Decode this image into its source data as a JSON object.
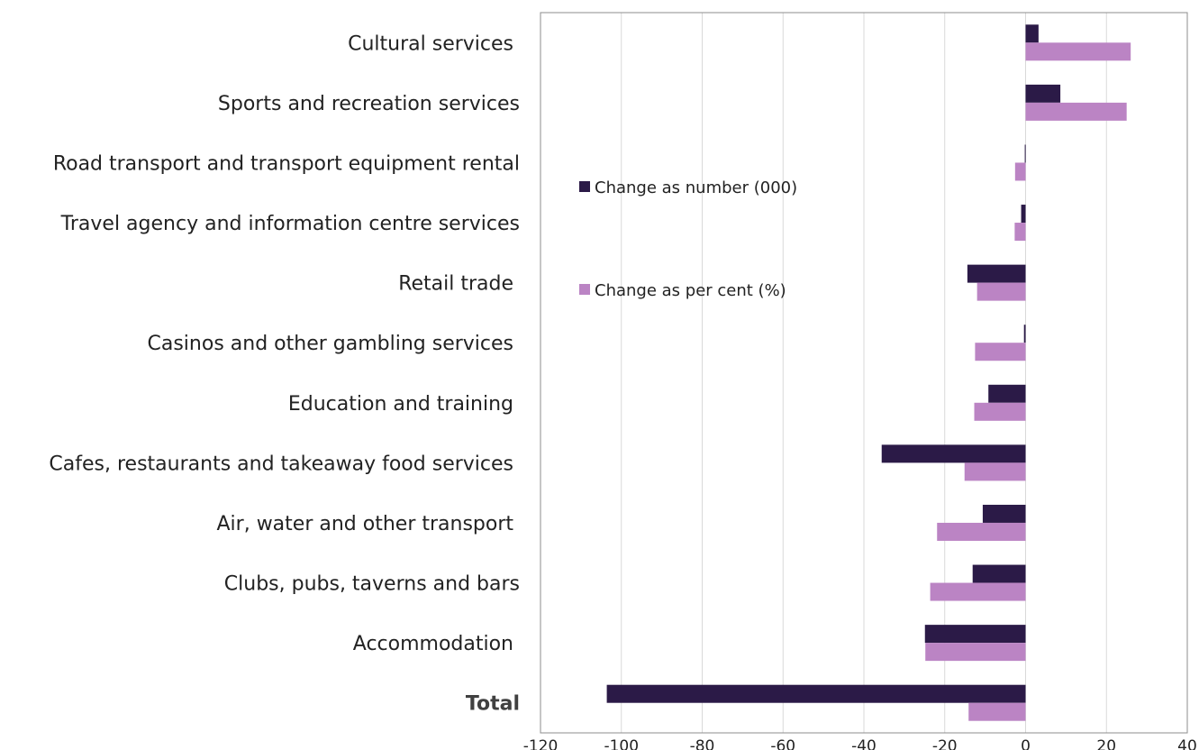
{
  "chart_data": {
    "type": "bar",
    "orientation": "horizontal",
    "categories": [
      "Cultural services ",
      "Sports and recreation services",
      "Road transport and transport equipment rental",
      "Travel agency and information centre services",
      "Retail trade ",
      "Casinos and other gambling services ",
      "Education and training ",
      "Cafes, restaurants and takeaway food services ",
      "Air, water and other transport ",
      "Clubs, pubs, taverns and bars",
      "Accommodation ",
      "Total"
    ],
    "bold_categories": [
      "Total"
    ],
    "series": [
      {
        "name": "Change as number (000)",
        "color": "#2b1a47",
        "values": [
          3.2,
          8.6,
          -0.2,
          -1.1,
          -14.4,
          -0.4,
          -9.2,
          -35.6,
          -10.6,
          -13.1,
          -24.9,
          -103.6
        ]
      },
      {
        "name": "Change as per cent (%)",
        "color": "#bb84c4",
        "values": [
          26.0,
          25.0,
          -2.6,
          -2.7,
          -12.0,
          -12.5,
          -12.7,
          -15.1,
          -21.9,
          -23.6,
          -24.8,
          -14.1
        ]
      }
    ],
    "xlim": [
      -120,
      40
    ],
    "xticks": [
      -120,
      -100,
      -80,
      -60,
      -40,
      -20,
      0,
      20,
      40
    ],
    "grid": "vertical",
    "legend_position": "upper-left inside plot"
  }
}
